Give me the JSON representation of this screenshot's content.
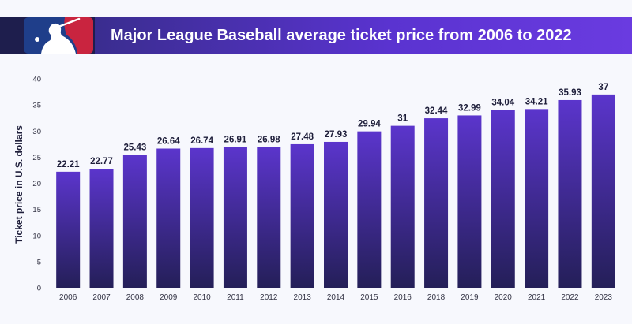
{
  "title": "Major League Baseball average ticket price from 2006 to 2022",
  "logo": {
    "name": "mlb-logo",
    "colors": {
      "blue": "#1f3e8a",
      "red": "#c9243f",
      "white": "#ffffff"
    }
  },
  "colors": {
    "banner_dark": "#1e1e4d",
    "banner_purple": "#5a33d0",
    "bar_top": "#5b35cc",
    "bar_bottom": "#241f58",
    "background": "#f7f8fd"
  },
  "chart_data": {
    "type": "bar",
    "title": "Major League Baseball average ticket price from 2006 to 2022",
    "xlabel": "",
    "ylabel": "Ticket price in U.S. dollars",
    "ylim": [
      0,
      40
    ],
    "yticks": [
      0,
      5,
      10,
      15,
      20,
      25,
      30,
      35,
      40
    ],
    "grid": false,
    "categories": [
      "2006",
      "2007",
      "2008",
      "2009",
      "2010",
      "2011",
      "2012",
      "2013",
      "2014",
      "2015",
      "2016",
      "2018",
      "2019",
      "2020",
      "2021",
      "2022",
      "2023"
    ],
    "values": [
      22.21,
      22.77,
      25.43,
      26.64,
      26.74,
      26.91,
      26.98,
      27.48,
      27.93,
      29.94,
      31,
      32.44,
      32.99,
      34.04,
      34.21,
      35.93,
      37
    ],
    "value_labels": [
      "22.21",
      "22.77",
      "25.43",
      "26.64",
      "26.74",
      "26.91",
      "26.98",
      "27.48",
      "27.93",
      "29.94",
      "31",
      "32.44",
      "32.99",
      "34.04",
      "34.21",
      "35.93",
      "37"
    ]
  }
}
